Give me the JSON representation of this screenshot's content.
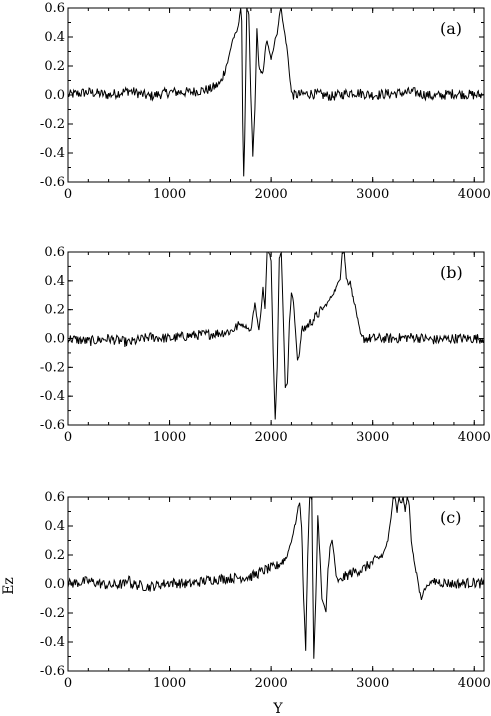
{
  "figure": {
    "ylabel": "Ez",
    "xlabel": "Y"
  },
  "chart_data": [
    {
      "type": "line",
      "panel_label": "(a)",
      "xlim": [
        0,
        4096
      ],
      "ylim": [
        -0.6,
        0.6
      ],
      "xticks": [
        "0",
        "1000",
        "2000",
        "3000",
        "4000"
      ],
      "yticks": [
        "-0.6",
        "-0.4",
        "-0.2",
        "0.0",
        "0.2",
        "0.4",
        "0.6"
      ],
      "grid": false,
      "line_color": "#000000",
      "series": [
        {
          "x": [
            0,
            200,
            400,
            600,
            800,
            1000,
            1200,
            1400,
            1500,
            1580,
            1620,
            1650,
            1670,
            1690,
            1700,
            1710,
            1720,
            1730,
            1740,
            1760,
            1780,
            1800,
            1820,
            1840,
            1860,
            1880,
            1900,
            1920,
            1940,
            1960,
            1980,
            2000,
            2020,
            2040,
            2060,
            2080,
            2100,
            2120,
            2140,
            2160,
            2180,
            2200,
            2220,
            2400,
            2600,
            2800,
            3000,
            3200,
            3400,
            3600,
            3800,
            4000,
            4096
          ],
          "y": [
            0.0,
            0.02,
            0.0,
            0.03,
            -0.01,
            0.02,
            0.02,
            0.04,
            0.08,
            0.25,
            0.38,
            0.42,
            0.45,
            0.55,
            0.6,
            0.5,
            -0.2,
            -0.55,
            -0.3,
            0.6,
            0.55,
            0.0,
            -0.42,
            -0.1,
            0.45,
            0.2,
            0.15,
            0.15,
            0.3,
            0.38,
            0.3,
            0.25,
            0.3,
            0.4,
            0.42,
            0.55,
            0.6,
            0.48,
            0.4,
            0.3,
            0.15,
            0.02,
            0.0,
            0.01,
            -0.01,
            0.02,
            0.0,
            0.01,
            0.02,
            -0.01,
            0.01,
            0.0,
            0.0
          ]
        }
      ]
    },
    {
      "type": "line",
      "panel_label": "(b)",
      "xlim": [
        0,
        4096
      ],
      "ylim": [
        -0.6,
        0.6
      ],
      "xticks": [
        "0",
        "1000",
        "2000",
        "3000",
        "4000"
      ],
      "yticks": [
        "-0.6",
        "-0.4",
        "-0.2",
        "0.0",
        "0.2",
        "0.4",
        "0.6"
      ],
      "grid": false,
      "line_color": "#000000",
      "series": [
        {
          "x": [
            0,
            200,
            400,
            600,
            800,
            1000,
            1200,
            1400,
            1600,
            1700,
            1760,
            1800,
            1840,
            1880,
            1920,
            1940,
            1960,
            1980,
            2000,
            2020,
            2040,
            2060,
            2080,
            2100,
            2120,
            2140,
            2160,
            2180,
            2200,
            2220,
            2240,
            2260,
            2280,
            2300,
            2400,
            2500,
            2560,
            2600,
            2640,
            2680,
            2700,
            2720,
            2740,
            2760,
            2780,
            2800,
            2820,
            2840,
            2860,
            2880,
            2900,
            3000,
            3200,
            3400,
            3600,
            3800,
            4000,
            4096
          ],
          "y": [
            0.0,
            -0.02,
            0.0,
            -0.03,
            0.01,
            0.0,
            0.02,
            0.03,
            0.05,
            0.1,
            0.08,
            0.05,
            0.25,
            0.05,
            0.35,
            0.2,
            0.6,
            0.6,
            0.55,
            -0.1,
            -0.55,
            -0.2,
            0.55,
            0.6,
            0.15,
            -0.35,
            -0.3,
            0.1,
            0.32,
            0.25,
            0.05,
            -0.15,
            -0.1,
            0.05,
            0.12,
            0.2,
            0.25,
            0.3,
            0.35,
            0.42,
            0.6,
            0.6,
            0.42,
            0.38,
            0.4,
            0.3,
            0.25,
            0.18,
            0.1,
            0.03,
            0.0,
            0.0,
            0.0,
            0.01,
            -0.01,
            0.0,
            0.0,
            0.0
          ]
        }
      ]
    },
    {
      "type": "line",
      "panel_label": "(c)",
      "xlim": [
        0,
        4096
      ],
      "ylim": [
        -0.6,
        0.6
      ],
      "xticks": [
        "0",
        "1000",
        "2000",
        "3000",
        "4000"
      ],
      "yticks": [
        "-0.6",
        "-0.4",
        "-0.2",
        "0.0",
        "0.2",
        "0.4",
        "0.6"
      ],
      "grid": false,
      "line_color": "#000000",
      "series": [
        {
          "x": [
            0,
            200,
            400,
            580,
            600,
            620,
            800,
            1000,
            1200,
            1400,
            1600,
            1800,
            1950,
            2050,
            2150,
            2200,
            2240,
            2260,
            2280,
            2300,
            2320,
            2340,
            2360,
            2380,
            2400,
            2420,
            2440,
            2460,
            2480,
            2500,
            2520,
            2540,
            2560,
            2580,
            2600,
            2620,
            2640,
            2660,
            2700,
            2800,
            2900,
            3000,
            3100,
            3150,
            3180,
            3200,
            3220,
            3240,
            3260,
            3280,
            3300,
            3320,
            3340,
            3360,
            3380,
            3400,
            3420,
            3440,
            3460,
            3480,
            3500,
            3550,
            3600,
            3800,
            4000,
            4096
          ],
          "y": [
            0.0,
            0.02,
            -0.01,
            0.0,
            0.06,
            0.0,
            -0.02,
            0.01,
            0.0,
            0.03,
            0.04,
            0.05,
            0.1,
            0.12,
            0.18,
            0.3,
            0.42,
            0.5,
            0.57,
            0.4,
            -0.1,
            -0.45,
            0.2,
            0.6,
            0.6,
            -0.52,
            -0.1,
            0.48,
            0.2,
            -0.1,
            -0.15,
            -0.2,
            0.1,
            0.25,
            0.3,
            0.2,
            0.05,
            0.02,
            0.04,
            0.08,
            0.1,
            0.15,
            0.2,
            0.3,
            0.45,
            0.6,
            0.6,
            0.5,
            0.6,
            0.55,
            0.6,
            0.5,
            0.6,
            0.55,
            0.3,
            0.2,
            0.1,
            0.05,
            -0.05,
            -0.1,
            -0.05,
            0.0,
            0.02,
            0.0,
            0.01,
            0.0
          ]
        }
      ]
    }
  ]
}
